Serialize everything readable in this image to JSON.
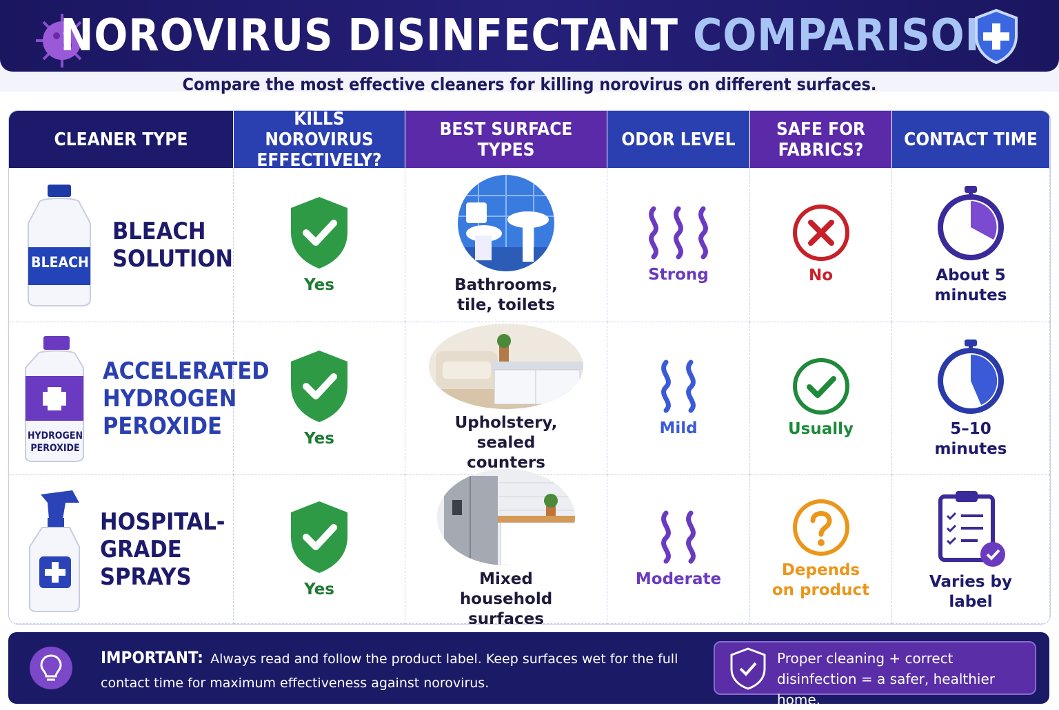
{
  "header": {
    "title_main": "NOROVIRUS DISINFECTANT",
    "title_accent": "COMPARISON",
    "subtitle": "Compare the most effective cleaners for killing norovirus on different surfaces."
  },
  "table": {
    "columns": [
      "CLEANER TYPE",
      "KILLS NOROVIRUS EFFECTIVELY?",
      "BEST SURFACE TYPES",
      "ODOR LEVEL",
      "SAFE FOR FABRICS?",
      "CONTACT TIME"
    ],
    "rows": [
      [
        "BLEACH SOLUTION",
        "Yes",
        "Bathrooms, tile, toilets",
        "Strong",
        "No",
        "About 5 minutes"
      ],
      [
        "ACCELERATED HYDROGEN PEROXIDE",
        "Yes",
        "Upholstery, sealed counters",
        "Mild",
        "Usually",
        "5–10 minutes"
      ],
      [
        "HOSPITAL-GRADE SPRAYS",
        "Yes",
        "Mixed household surfaces",
        "Moderate",
        "Depends on product",
        "Varies by label"
      ]
    ],
    "product_labels": [
      "BLEACH",
      "HYDROGEN PEROXIDE"
    ]
  },
  "footer": {
    "label": "IMPORTANT:",
    "text": "Always read and follow the product label. Keep surfaces wet for the full contact time for maximum effectiveness against norovirus.",
    "callout": "Proper cleaning + correct disinfection = a safer, healthier home."
  }
}
